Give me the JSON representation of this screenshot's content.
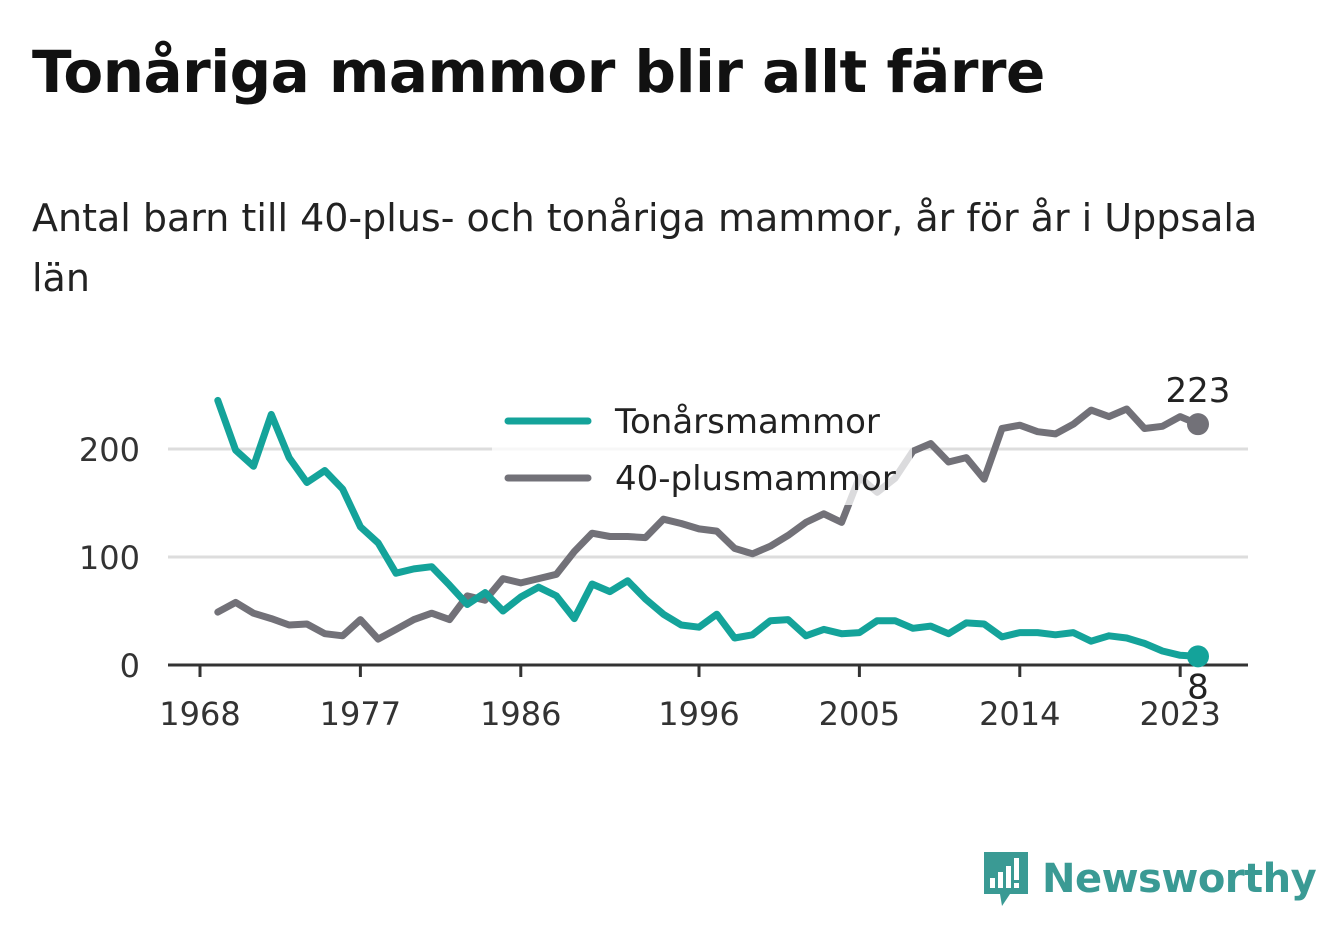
{
  "header": {
    "title": "Tonåriga mammor blir allt färre",
    "subtitle": "Antal barn till 40-plus- och tonåriga mammor, år för år i Uppsala län"
  },
  "brand": {
    "name": "Newsworthy",
    "color": "#3a9a94"
  },
  "chart_data": {
    "type": "line",
    "x": [
      1969,
      1970,
      1971,
      1972,
      1973,
      1974,
      1975,
      1976,
      1977,
      1978,
      1979,
      1980,
      1981,
      1982,
      1983,
      1984,
      1985,
      1986,
      1987,
      1988,
      1989,
      1990,
      1991,
      1992,
      1993,
      1994,
      1995,
      1996,
      1997,
      1998,
      1999,
      2000,
      2001,
      2002,
      2003,
      2004,
      2005,
      2006,
      2007,
      2008,
      2009,
      2010,
      2011,
      2012,
      2013,
      2014,
      2015,
      2016,
      2017,
      2018,
      2019,
      2020,
      2021,
      2022,
      2023,
      2024
    ],
    "series": [
      {
        "name": "Tonårsmammor",
        "color": "#14a39a",
        "values": [
          245,
          199,
          184,
          232,
          192,
          169,
          180,
          163,
          128,
          113,
          85,
          89,
          91,
          74,
          56,
          67,
          50,
          63,
          72,
          64,
          43,
          75,
          68,
          78,
          61,
          47,
          37,
          35,
          47,
          25,
          28,
          41,
          42,
          27,
          33,
          29,
          30,
          41,
          41,
          34,
          36,
          29,
          39,
          38,
          26,
          30,
          30,
          28,
          30,
          22,
          27,
          25,
          20,
          13,
          9,
          8
        ],
        "end_label": "8"
      },
      {
        "name": "40-plusmammor",
        "color": "#727178",
        "values": [
          49,
          58,
          48,
          43,
          37,
          38,
          29,
          27,
          42,
          24,
          33,
          42,
          48,
          42,
          64,
          60,
          80,
          76,
          80,
          84,
          105,
          122,
          119,
          119,
          118,
          135,
          131,
          126,
          124,
          108,
          103,
          110,
          120,
          132,
          140,
          132,
          174,
          160,
          173,
          198,
          205,
          188,
          192,
          172,
          219,
          222,
          216,
          214,
          223,
          236,
          230,
          237,
          219,
          221,
          230,
          223
        ],
        "end_label": "223"
      }
    ],
    "x_ticks": [
      "1968",
      "1977",
      "1986",
      "1996",
      "2005",
      "2014",
      "2023"
    ],
    "x_tick_values": [
      1968,
      1977,
      1986,
      1996,
      2005,
      2014,
      2023
    ],
    "y_ticks": [
      "0",
      "100",
      "200"
    ],
    "y_tick_values": [
      0,
      100,
      200
    ],
    "xlim": [
      1968,
      2026
    ],
    "ylim": [
      0,
      250
    ],
    "grid": true,
    "legend": "top-center",
    "gap_color": "#d8d8d8"
  }
}
